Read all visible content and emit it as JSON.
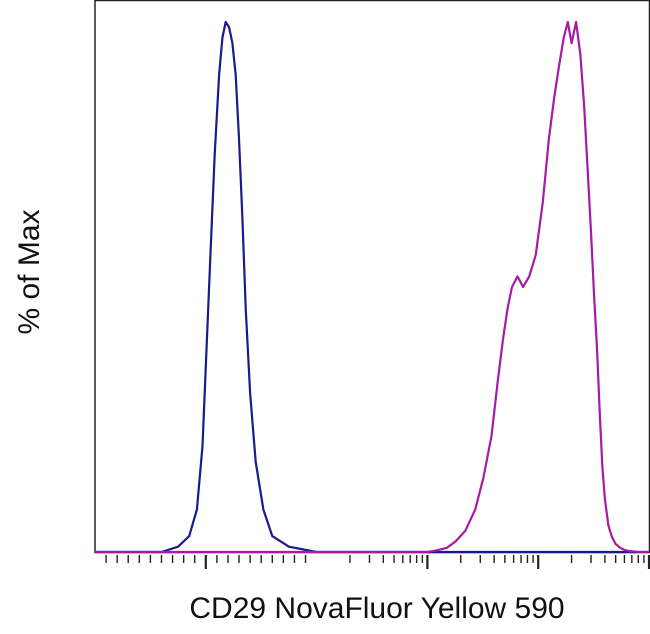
{
  "chart_data": {
    "type": "line",
    "title": "",
    "xlabel": "CD29 NovaFluor Yellow 590",
    "ylabel": "% of Max",
    "x_scale": "log",
    "tick_labels": "none",
    "xlim": [
      -100,
      100000
    ],
    "ylim": [
      0,
      100
    ],
    "grid": false,
    "legend": "none",
    "series": [
      {
        "color": "#1a1a8c",
        "x": [
          -100,
          -40,
          -25,
          -15,
          -8,
          -3,
          0,
          4,
          8,
          12,
          15,
          18,
          21,
          24,
          27,
          30,
          33,
          36,
          40,
          45,
          52,
          60,
          75,
          100,
          150,
          300,
          1000,
          100000
        ],
        "y": [
          0,
          0,
          1,
          3,
          8,
          20,
          35,
          55,
          75,
          90,
          97,
          100,
          99,
          96,
          90,
          78,
          63,
          46,
          30,
          17,
          8,
          3,
          1,
          0,
          0,
          0,
          0,
          0
        ]
      },
      {
        "color": "#a61aa6",
        "x": [
          -100,
          1000,
          1200,
          1500,
          1800,
          2200,
          2700,
          3200,
          3800,
          4300,
          4800,
          5300,
          5800,
          6500,
          7300,
          8300,
          9500,
          11000,
          12500,
          14000,
          15500,
          17000,
          18500,
          20000,
          22000,
          24000,
          26000,
          28000,
          30000,
          32000,
          34000,
          36000,
          38000,
          40000,
          43000,
          46000,
          50000,
          55000,
          60000,
          66000,
          73000,
          80000,
          100000
        ],
        "y": [
          0,
          0,
          0.3,
          0.8,
          2,
          4,
          8,
          14,
          22,
          32,
          40,
          46,
          50,
          52,
          50,
          52,
          56,
          66,
          78,
          86,
          92,
          97,
          100,
          96,
          100,
          94,
          84,
          72,
          60,
          48,
          38,
          26,
          16,
          10,
          5,
          3,
          1.5,
          0.8,
          0.4,
          0.2,
          0.1,
          0,
          0
        ]
      }
    ]
  }
}
